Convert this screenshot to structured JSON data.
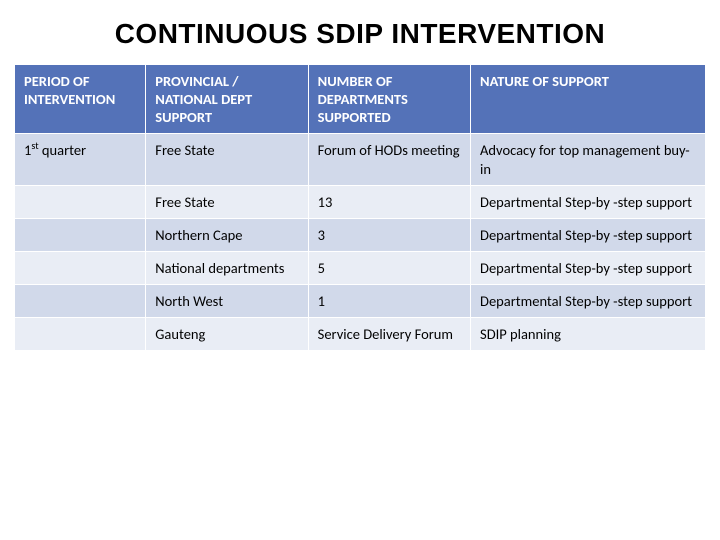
{
  "title": "CONTINUOUS SDIP INTERVENTION",
  "table": {
    "headers": {
      "period": "PERIOD OF INTERVENTION",
      "support": "PROVINCIAL / NATIONAL DEPT SUPPORT",
      "number": "NUMBER OF DEPARTMENTS SUPPORTED",
      "nature": "NATURE OF SUPPORT"
    },
    "rows": [
      {
        "period_html": "1<sup>st</sup> quarter",
        "support": "Free State",
        "number": "Forum of HODs meeting",
        "nature": "Advocacy  for top management buy-in"
      },
      {
        "period_html": "",
        "support": "Free State",
        "number": "13",
        "nature": "Departmental Step-by -step support"
      },
      {
        "period_html": "",
        "support": "Northern Cape",
        "number": "3",
        "nature": "Departmental Step-by -step support"
      },
      {
        "period_html": "",
        "support": "National departments",
        "number": "5",
        "nature": "Departmental Step-by -step support"
      },
      {
        "period_html": "",
        "support": "North West",
        "number": "1",
        "nature": "Departmental Step-by -step support"
      },
      {
        "period_html": "",
        "support": "Gauteng",
        "number": "Service Delivery Forum",
        "nature": "SDIP planning"
      }
    ],
    "colors": {
      "header_bg": "#5472b8",
      "header_fg": "#ffffff",
      "row_odd_bg": "#d1d9ea",
      "row_even_bg": "#e9edf5",
      "cell_fg": "#000000",
      "border": "#ffffff"
    },
    "col_widths_pct": {
      "period": 19,
      "support": 23.5,
      "number": 23.5,
      "nature": 34
    },
    "font_size_pt": 14.5
  }
}
